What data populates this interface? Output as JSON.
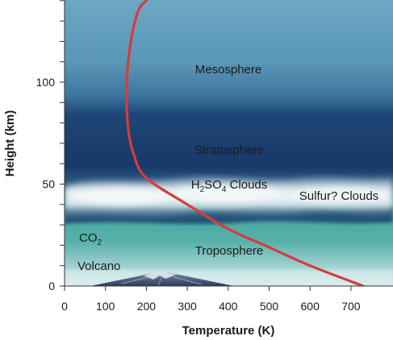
{
  "labels": {
    "mesosphere": "Mesosphere",
    "stratosphere": "Stratosphere",
    "h2so4_clouds": {
      "pre": "H",
      "sub1": "2",
      "mid": "SO",
      "sub2": "4",
      "post": " Clouds"
    },
    "sulfur_clouds": "Sulfur? Clouds",
    "co2": {
      "pre": "CO",
      "sub": "2"
    },
    "troposphere": "Troposphere",
    "volcano": "Volcano"
  },
  "axes": {
    "x": {
      "title": "Temperature (K)",
      "ticks": [
        "0",
        "100",
        "200",
        "300",
        "400",
        "500",
        "600",
        "700"
      ],
      "range_k": [
        0,
        800
      ]
    },
    "y": {
      "title": "Height (km)",
      "ticks": [
        "0",
        "50",
        "100"
      ],
      "range_km": [
        0,
        140
      ],
      "minor_step_km": 10
    }
  },
  "colors": {
    "mesosphere": "#5a9bb8",
    "stratosphere": "#1a3d6c",
    "troposphere": "#4da9a3",
    "surface": "#cfe6ea",
    "clouds": "#f2f6f8",
    "temperature_curve": "#d63c3c",
    "volcano": "#3c4a6c"
  },
  "chart_data": {
    "type": "line",
    "xlabel": "Temperature (K)",
    "ylabel": "Height (km)",
    "xlim": [
      0,
      800
    ],
    "ylim": [
      0,
      140
    ],
    "series": [
      {
        "points": [
          [
            730,
            0
          ],
          [
            600,
            10
          ],
          [
            500,
            19
          ],
          [
            400,
            28
          ],
          [
            300,
            40
          ],
          [
            200,
            53
          ],
          [
            170,
            64
          ],
          [
            155,
            78
          ],
          [
            152,
            100
          ],
          [
            162,
            120
          ],
          [
            180,
            135
          ],
          [
            200,
            140
          ]
        ]
      }
    ]
  }
}
